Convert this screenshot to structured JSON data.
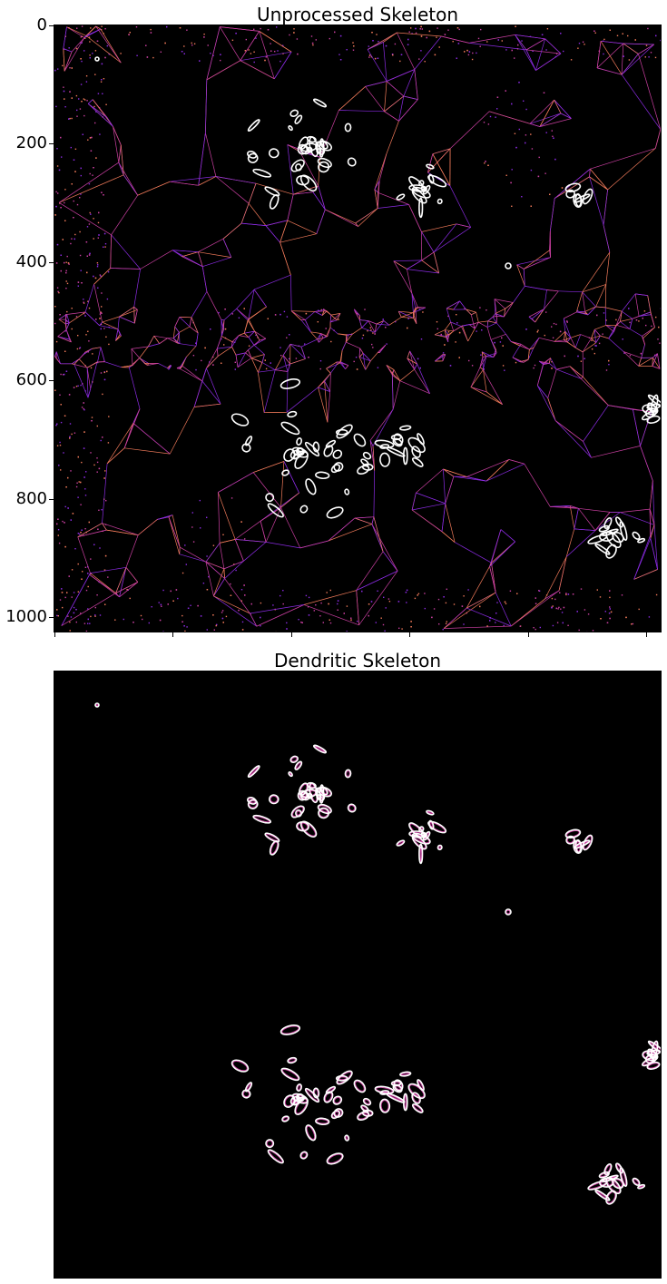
{
  "figure": {
    "panels": [
      {
        "title": "Unprocessed Skeleton",
        "y_axis": {
          "ticks": [
            "0",
            "200",
            "400",
            "600",
            "800",
            "1000"
          ],
          "range": [
            0,
            1024
          ],
          "inverted": true
        },
        "x_axis": {
          "tick_labels_hidden": true
        },
        "colormap": "magma",
        "content": "voronoi-skeleton"
      },
      {
        "title": "Dendritic Skeleton",
        "y_axis": {
          "ticks": []
        },
        "x_axis": {
          "ticks": []
        },
        "colormap": "magma",
        "content": "dendrite-outlines"
      }
    ],
    "colors": {
      "background": "#000000",
      "skeleton_magenta": "#c93fa0",
      "skeleton_orange": "#f07a5a",
      "skeleton_purple": "#8a2be2",
      "outline": "#ffffff"
    }
  }
}
